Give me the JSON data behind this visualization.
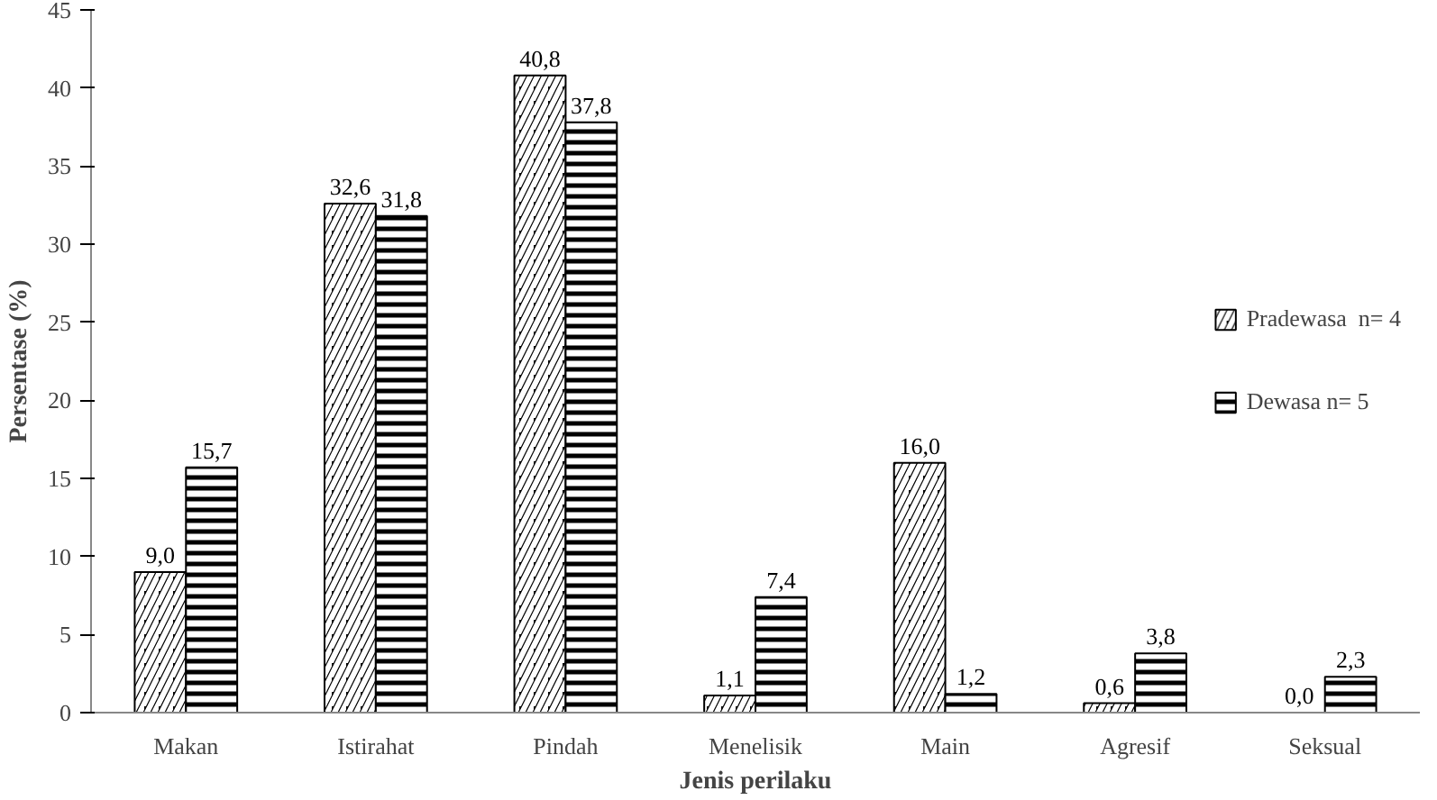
{
  "chart_data": {
    "type": "bar",
    "xlabel": "Jenis perilaku",
    "ylabel": "Persentase (%)",
    "categories": [
      "Makan",
      "Istirahat",
      "Pindah",
      "Menelisik",
      "Main",
      "Agresif",
      "Seksual"
    ],
    "series": [
      {
        "name": "Pradewasa  n= 4",
        "color": "#000000",
        "values": [
          9.0,
          32.6,
          40.8,
          1.1,
          16.0,
          0.6,
          0.0
        ],
        "value_labels": [
          "9,0",
          "32,6",
          "40,8",
          "1,1",
          "16,0",
          "0,6",
          "0,0"
        ]
      },
      {
        "name": "Dewasa n= 5",
        "color": "#000000",
        "values": [
          15.7,
          31.8,
          37.8,
          7.4,
          1.2,
          3.8,
          2.3
        ],
        "value_labels": [
          "15,7",
          "31,8",
          "37,8",
          "7,4",
          "1,2",
          "3,8",
          "2,3"
        ]
      }
    ],
    "ylim": [
      0,
      45
    ],
    "yticks": [
      0,
      5,
      10,
      15,
      20,
      25,
      30,
      35,
      40,
      45
    ],
    "grid": false,
    "legend": "right"
  }
}
